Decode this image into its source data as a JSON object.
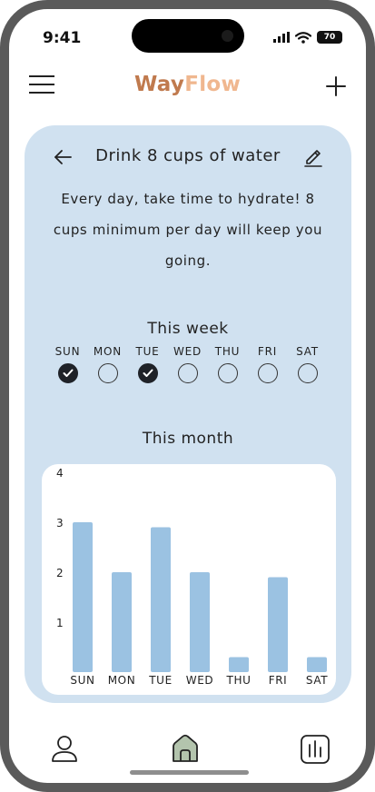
{
  "status_bar": {
    "time": "9:41",
    "battery": "70"
  },
  "header": {
    "brand_part1": "Way",
    "brand_part2": "Flow",
    "brand_colors": {
      "way": "#c07a4e",
      "flow": "#f0b78f"
    },
    "menu_icon": "hamburger-icon",
    "add_icon": "plus-icon"
  },
  "habit": {
    "title": "Drink 8 cups of water",
    "description": "Every day, take time to hydrate! 8 cups minimum per day will keep you going.",
    "back_icon": "arrow-left-icon",
    "edit_icon": "pencil-icon",
    "card_color": "#d0e1f0"
  },
  "week": {
    "title": "This week",
    "days": [
      {
        "label": "SUN",
        "done": true
      },
      {
        "label": "MON",
        "done": false
      },
      {
        "label": "TUE",
        "done": true
      },
      {
        "label": "WED",
        "done": false
      },
      {
        "label": "THU",
        "done": false
      },
      {
        "label": "FRI",
        "done": false
      },
      {
        "label": "SAT",
        "done": false
      }
    ]
  },
  "month": {
    "title": "This month"
  },
  "chart_data": {
    "type": "bar",
    "categories": [
      "SUN",
      "MON",
      "TUE",
      "WED",
      "THU",
      "FRI",
      "SAT"
    ],
    "values": [
      3.0,
      2.0,
      2.9,
      2.0,
      0.3,
      1.9,
      0.3
    ],
    "yticks": [
      1,
      2,
      3,
      4
    ],
    "ylim": [
      0,
      4
    ],
    "grid": false,
    "bar_color": "#9bc2e2",
    "title": "",
    "xlabel": "",
    "ylabel": ""
  },
  "tab_bar": {
    "tabs": [
      {
        "icon": "profile-icon"
      },
      {
        "icon": "home-icon",
        "active": true
      },
      {
        "icon": "stats-icon"
      }
    ],
    "active_color": "#b3c4ad"
  }
}
